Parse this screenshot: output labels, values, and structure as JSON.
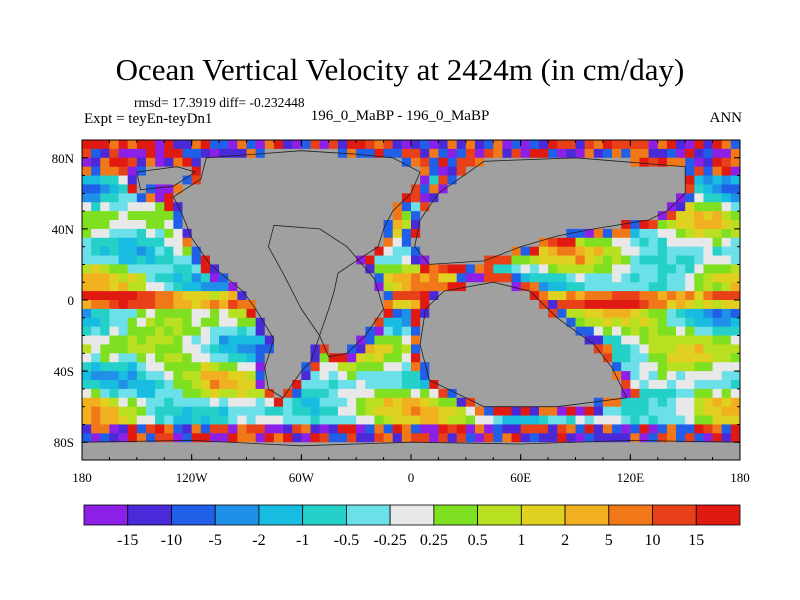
{
  "chart_data": {
    "type": "heatmap",
    "title": "Ocean Vertical Velocity at 2424m (in cm/day)",
    "stats": "rmsd= 17.3919 diff= -0.232448",
    "left_label": "Expt = teyEn-teyDn1",
    "center_label": "196_0_MaBP - 196_0_MaBP",
    "right_label": "ANN",
    "x_ticks": [
      "180",
      "120W",
      "60W",
      "0",
      "60E",
      "120E",
      "180"
    ],
    "x_tick_values": [
      -180,
      -120,
      -60,
      0,
      60,
      120,
      180
    ],
    "y_ticks": [
      "80N",
      "40N",
      "0",
      "40S",
      "80S"
    ],
    "y_tick_values": [
      80,
      40,
      0,
      -40,
      -80
    ],
    "xlim": [
      -180,
      180
    ],
    "ylim": [
      -90,
      90
    ],
    "colorbar_levels": [
      "-15",
      "-10",
      "-5",
      "-2",
      "-1",
      "-0.5",
      "-0.25",
      "0.25",
      "0.5",
      "1",
      "2",
      "5",
      "10",
      "15"
    ],
    "colorbar_colors": [
      "#8c20e6",
      "#4a2ad8",
      "#2060e8",
      "#1e90e8",
      "#18bce0",
      "#24d0c8",
      "#6ce0e8",
      "#e8e8e8",
      "#7ee020",
      "#b8e020",
      "#e0d020",
      "#f0b020",
      "#f07818",
      "#e84018",
      "#e01a10"
    ],
    "land_color": "#a0a0a0"
  }
}
